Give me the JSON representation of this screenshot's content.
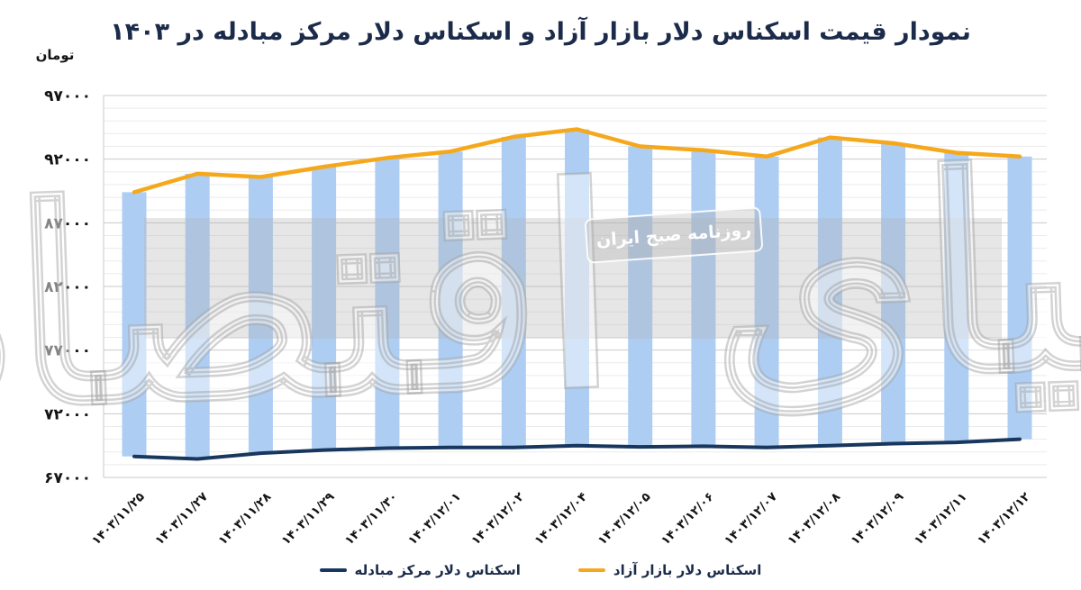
{
  "watermark": {
    "badge_text": "روزنامه صبح ایران",
    "calligraphy_text": "دنیای اقتصاد"
  },
  "chart_data": {
    "type": "combo: floating columns between two line series",
    "title": "نمودار قیمت اسکناس دلار بازار آزاد و اسکناس دلار مرکز مبادله در ۱۴۰۳",
    "unit": "تومان",
    "categories": [
      "۱۴۰۳/۱۱/۲۵",
      "۱۴۰۳/۱۱/۲۷",
      "۱۴۰۳/۱۱/۲۸",
      "۱۴۰۳/۱۱/۲۹",
      "۱۴۰۳/۱۱/۳۰",
      "۱۴۰۳/۱۲/۰۱",
      "۱۴۰۳/۱۲/۰۲",
      "۱۴۰۳/۱۲/۰۴",
      "۱۴۰۳/۱۲/۰۵",
      "۱۴۰۳/۱۲/۰۶",
      "۱۴۰۳/۱۲/۰۷",
      "۱۴۰۳/۱۲/۰۸",
      "۱۴۰۳/۱۲/۰۹",
      "۱۴۰۳/۱۲/۱۱",
      "۱۴۰۳/۱۲/۱۲"
    ],
    "series": [
      {
        "name": "اسکناس دلار بازار آزاد",
        "type": "line",
        "color": "#F6A81C",
        "values": [
          89400,
          90850,
          90600,
          91400,
          92100,
          92600,
          93750,
          94350,
          93000,
          92700,
          92200,
          93700,
          93250,
          92500,
          92200
        ]
      },
      {
        "name": "اسکناس دلار مرکز مبادله",
        "type": "line",
        "color": "#17375E",
        "values": [
          68650,
          68450,
          68900,
          69150,
          69300,
          69350,
          69350,
          69500,
          69400,
          69450,
          69350,
          69500,
          69650,
          69750,
          70000
        ]
      },
      {
        "name": "ستون بازه قیمت (از نرخ مرکز مبادله تا نرخ بازار آزاد)",
        "type": "floating-column",
        "color": "#ADCDF3",
        "from_series": 1,
        "to_series": 0
      }
    ],
    "ylim": [
      67000,
      97000
    ],
    "y_major_step": 5000,
    "y_minor_step": 1000,
    "y_tick_labels": [
      "۹۷۰۰۰",
      "۹۲۰۰۰",
      "۸۷۰۰۰",
      "۸۲۰۰۰",
      "۷۷۰۰۰",
      "۷۲۰۰۰",
      "۶۷۰۰۰"
    ],
    "grid": "horizontal",
    "legend_position": "bottom"
  }
}
